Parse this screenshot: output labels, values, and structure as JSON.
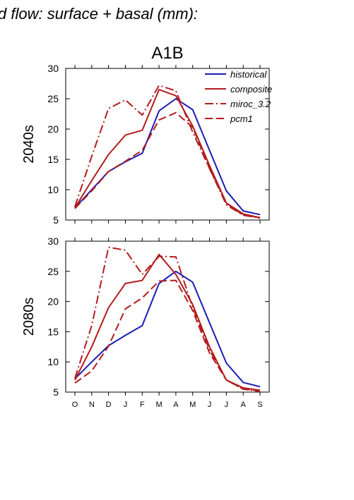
{
  "header": {
    "title": "d flow: surface + basal (mm):"
  },
  "chart_data": [
    {
      "type": "line",
      "title": "A1B",
      "ylabel": "2040s",
      "xlabel": "",
      "categories": [
        "O",
        "N",
        "D",
        "J",
        "F",
        "M",
        "A",
        "M",
        "J",
        "J",
        "A",
        "S"
      ],
      "ylim": [
        5,
        30
      ],
      "yticks": [
        5,
        10,
        15,
        20,
        25,
        30
      ],
      "legend": "top-right",
      "series": [
        {
          "name": "historical",
          "color": "#1c1cb4",
          "style": "solid",
          "values": [
            7.0,
            10.0,
            13.0,
            14.6,
            16.0,
            23.0,
            25.0,
            23.2,
            16.5,
            9.8,
            6.5,
            5.9
          ]
        },
        {
          "name": "composite",
          "color": "#b41c1c",
          "style": "solid",
          "values": [
            7.0,
            11.5,
            15.8,
            19.0,
            19.8,
            26.5,
            25.5,
            20.5,
            14.0,
            7.8,
            6.0,
            5.4
          ]
        },
        {
          "name": "miroc_3.2",
          "color": "#b41c1c",
          "style": "dashdot",
          "values": [
            7.2,
            15.5,
            23.4,
            24.8,
            22.3,
            27.2,
            26.3,
            19.5,
            13.5,
            7.5,
            5.8,
            5.3
          ]
        },
        {
          "name": "pcm1",
          "color": "#b41c1c",
          "style": "dash",
          "values": [
            6.9,
            9.8,
            13.0,
            14.7,
            16.5,
            21.5,
            22.7,
            20.3,
            13.5,
            7.8,
            5.8,
            5.4
          ]
        }
      ]
    },
    {
      "type": "line",
      "title": "",
      "ylabel": "2080s",
      "xlabel": "",
      "categories": [
        "O",
        "N",
        "D",
        "J",
        "F",
        "M",
        "A",
        "M",
        "J",
        "J",
        "A",
        "S"
      ],
      "ylim": [
        5,
        30
      ],
      "yticks": [
        5,
        10,
        15,
        20,
        25,
        30
      ],
      "series": [
        {
          "name": "historical",
          "color": "#1c1cb4",
          "style": "solid",
          "values": [
            7.2,
            10.0,
            12.7,
            14.4,
            16.0,
            23.0,
            25.0,
            23.2,
            16.5,
            9.8,
            6.6,
            5.9
          ]
        },
        {
          "name": "composite",
          "color": "#b41c1c",
          "style": "solid",
          "values": [
            7.0,
            12.5,
            19.0,
            23.0,
            23.5,
            27.8,
            24.5,
            19.5,
            12.5,
            7.0,
            5.7,
            5.3
          ]
        },
        {
          "name": "miroc_3.2",
          "color": "#b41c1c",
          "style": "dashdot",
          "values": [
            7.3,
            16.0,
            29.0,
            28.5,
            24.5,
            27.5,
            27.4,
            19.0,
            12.0,
            7.0,
            5.5,
            5.1
          ]
        },
        {
          "name": "pcm1",
          "color": "#b41c1c",
          "style": "dash",
          "values": [
            6.5,
            8.5,
            12.6,
            18.8,
            20.6,
            23.4,
            23.5,
            18.5,
            11.5,
            7.0,
            5.5,
            5.2
          ]
        }
      ]
    }
  ]
}
